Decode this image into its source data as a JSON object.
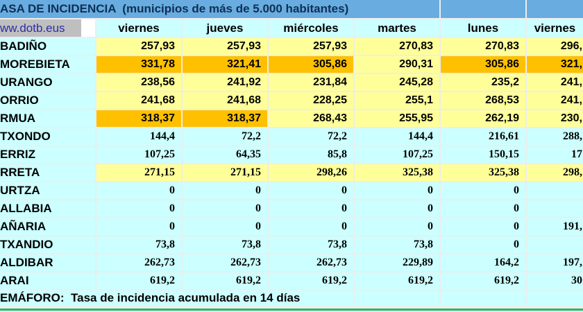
{
  "sheet": {
    "title": "ASA DE INCIDENCIA  (municipios de más de 5.000 habitantes)",
    "link": "ww.dotb.eus",
    "day_columns": [
      "viernes",
      "jueves",
      "miércoles",
      "martes",
      "lunes",
      "viernes"
    ],
    "footer": "EMÁFORO:  Tasa de incidencia acumulada en 14 días",
    "rows": [
      {
        "name": "BADIÑO",
        "font": "sans",
        "values": [
          "257,93",
          "257,93",
          "257,93",
          "270,83",
          "270,83",
          "296,"
        ],
        "bands": [
          "Y",
          "Y",
          "Y",
          "Y",
          "Y",
          "Y"
        ]
      },
      {
        "name": "MOREBIETA",
        "font": "sans",
        "values": [
          "331,78",
          "321,41",
          "305,86",
          "290,31",
          "305,86",
          "321,"
        ],
        "bands": [
          "O",
          "O",
          "O",
          "Y",
          "O",
          "O"
        ]
      },
      {
        "name": "URANGO",
        "font": "sans",
        "values": [
          "238,56",
          "241,92",
          "231,84",
          "245,28",
          "235,2",
          "241,"
        ],
        "bands": [
          "Y",
          "Y",
          "Y",
          "Y",
          "Y",
          "Y"
        ]
      },
      {
        "name": "ORRIO",
        "font": "sans",
        "values": [
          "241,68",
          "241,68",
          "228,25",
          "255,1",
          "268,53",
          "241,"
        ],
        "bands": [
          "Y",
          "Y",
          "Y",
          "Y",
          "Y",
          "Y"
        ]
      },
      {
        "name": "RMUA",
        "font": "sans",
        "values": [
          "318,37",
          "318,37",
          "268,43",
          "255,95",
          "262,19",
          "230,"
        ],
        "bands": [
          "O",
          "O",
          "Y",
          "Y",
          "Y",
          "Y"
        ]
      },
      {
        "name": "TXONDO",
        "font": "serif",
        "values": [
          "144,4",
          "72,2",
          "72,2",
          "144,4",
          "216,61",
          "288,"
        ],
        "bands": [
          "C",
          "C",
          "C",
          "C",
          "C",
          "C"
        ]
      },
      {
        "name": "ERRIZ",
        "font": "serif",
        "values": [
          "107,25",
          "64,35",
          "85,8",
          "107,25",
          "150,15",
          "17"
        ],
        "bands": [
          "C",
          "C",
          "C",
          "C",
          "C",
          "C"
        ]
      },
      {
        "name": "RRETA",
        "font": "serif",
        "values": [
          "271,15",
          "271,15",
          "298,26",
          "325,38",
          "325,38",
          "298,"
        ],
        "bands": [
          "Y",
          "Y",
          "Y",
          "Y",
          "Y",
          "Y"
        ]
      },
      {
        "name": "URTZA",
        "font": "serif",
        "values": [
          "0",
          "0",
          "0",
          "0",
          "0",
          ""
        ],
        "bands": [
          "C",
          "C",
          "C",
          "C",
          "C",
          "C"
        ]
      },
      {
        "name": "ALLABIA",
        "font": "serif",
        "values": [
          "0",
          "0",
          "0",
          "0",
          "0",
          ""
        ],
        "bands": [
          "C",
          "C",
          "C",
          "C",
          "C",
          "C"
        ]
      },
      {
        "name": "AÑARIA",
        "font": "serif",
        "values": [
          "0",
          "0",
          "0",
          "0",
          "0",
          "191,"
        ],
        "bands": [
          "C",
          "C",
          "C",
          "C",
          "C",
          "C"
        ]
      },
      {
        "name": "TXANDIO",
        "font": "serif",
        "values": [
          "73,8",
          "73,8",
          "73,8",
          "73,8",
          "0",
          ""
        ],
        "bands": [
          "C",
          "C",
          "C",
          "C",
          "C",
          "C"
        ]
      },
      {
        "name": "ALDIBAR",
        "font": "serif",
        "values": [
          "262,73",
          "262,73",
          "262,73",
          "229,89",
          "164,2",
          "197,"
        ],
        "bands": [
          "C",
          "C",
          "C",
          "C",
          "C",
          "C"
        ]
      },
      {
        "name": "ARAI",
        "font": "serif",
        "values": [
          "619,2",
          "619,2",
          "619,2",
          "619,2",
          "619,2",
          "30"
        ],
        "bands": [
          "C",
          "C",
          "C",
          "C",
          "C",
          "C"
        ]
      }
    ]
  },
  "colors": {
    "title_bg": "#68ace0",
    "title_text": "#0e2f55",
    "cell_cyan": "#ccffff",
    "cell_yellow": "#ffff99",
    "cell_orange": "#ffc000",
    "link_box_gray": "#bfbfbf",
    "link_text": "#2d2da6",
    "gridline": "#ededed",
    "bottom_border_green": "#3cad4e"
  }
}
